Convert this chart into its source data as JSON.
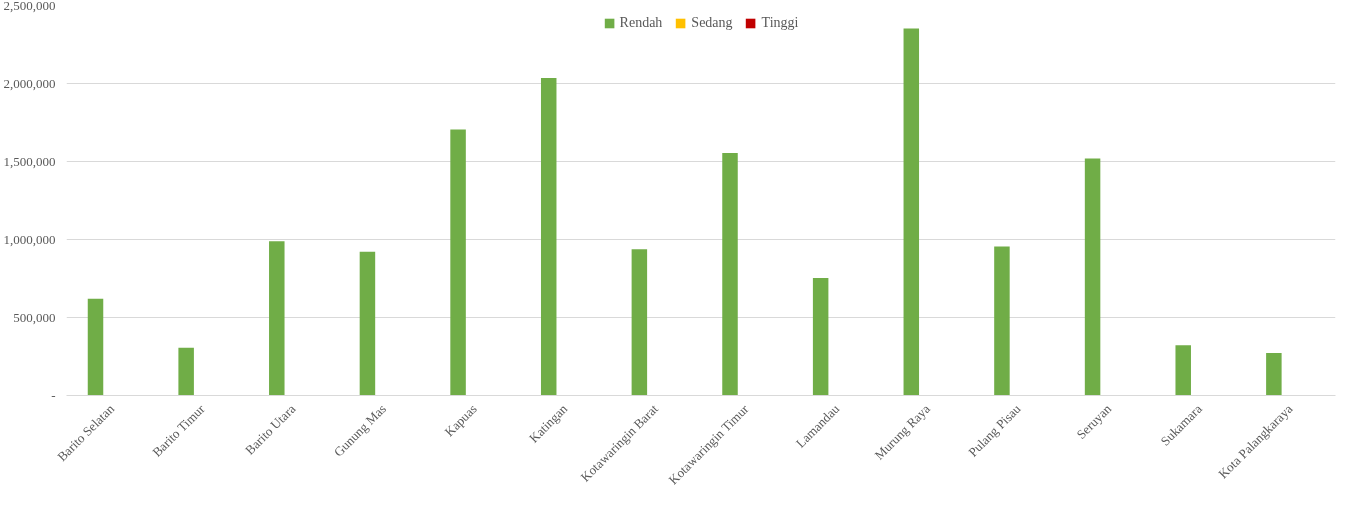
{
  "chart_data": {
    "type": "bar",
    "categories": [
      "Barito Selatan",
      "Barito Timur",
      "Barito Utara",
      "Gunung Mas",
      "Kapuas",
      "Katingan",
      "Kotawaringin Barat",
      "Kotawaringin Timur",
      "Lamandau",
      "Murung Raya",
      "Pulang Pisau",
      "Seruyan",
      "Sukamara",
      "Kota Palangkaraya"
    ],
    "series": [
      {
        "name": "Rendah",
        "color": "#70ad47",
        "values": [
          620000,
          306000,
          988000,
          921000,
          1705000,
          2035000,
          938000,
          1554000,
          754000,
          2353000,
          955000,
          1520000,
          322000,
          272000
        ]
      },
      {
        "name": "Sedang",
        "color": "#ffc000",
        "values": [
          0,
          0,
          0,
          0,
          0,
          0,
          0,
          0,
          0,
          0,
          0,
          0,
          0,
          0
        ]
      },
      {
        "name": "Tinggi",
        "color": "#c00000",
        "values": [
          0,
          0,
          0,
          0,
          0,
          0,
          0,
          0,
          0,
          0,
          0,
          0,
          0,
          0
        ]
      }
    ],
    "ylim": [
      0,
      2500000
    ],
    "yticks": [
      {
        "value": 0,
        "label": "-"
      },
      {
        "value": 500000,
        "label": "500,000"
      },
      {
        "value": 1000000,
        "label": "1,000,000"
      },
      {
        "value": 1500000,
        "label": "1,500,000"
      },
      {
        "value": 2000000,
        "label": "2,000,000"
      },
      {
        "value": 2500000,
        "label": "2,500,000"
      }
    ],
    "grid": "y",
    "legend": "top"
  }
}
